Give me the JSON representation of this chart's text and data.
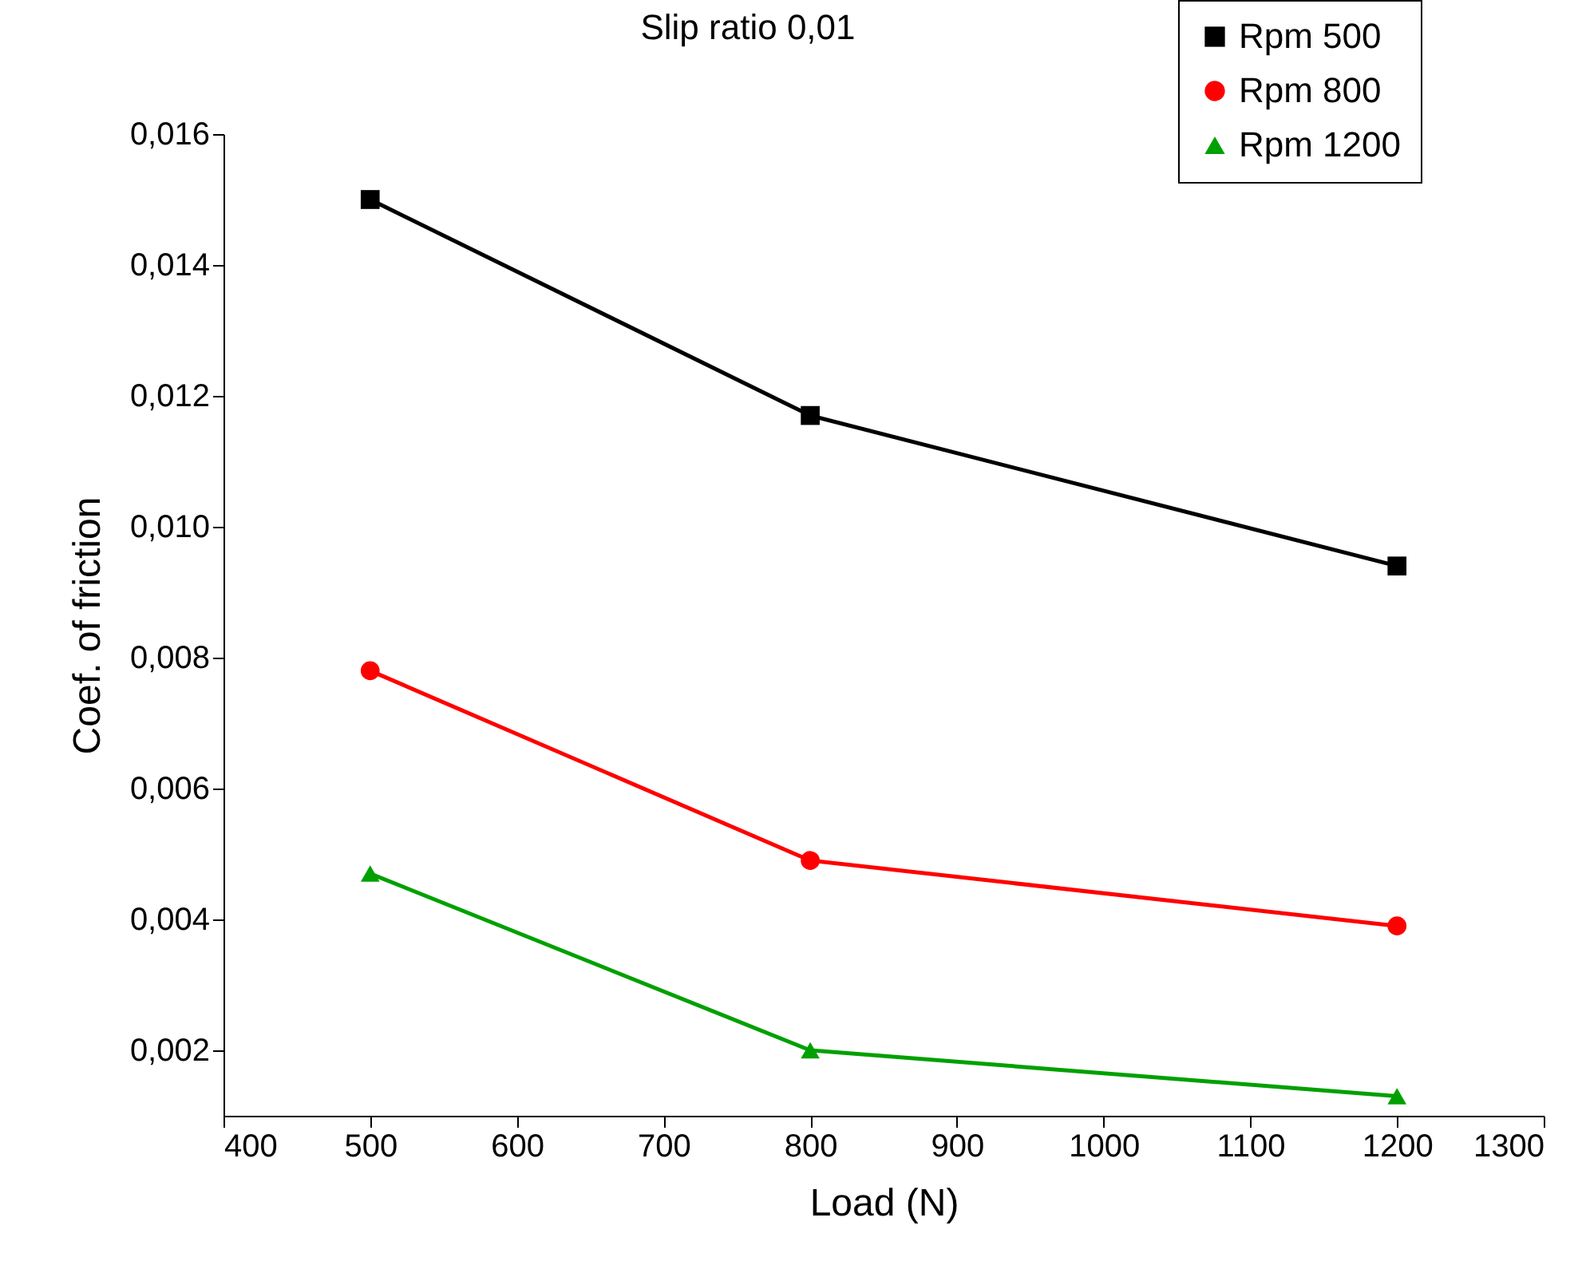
{
  "chart_data": {
    "type": "line",
    "title": "Slip ratio 0,01",
    "xlabel": "Load (N)",
    "ylabel": "Coef. of friction",
    "x": [
      500,
      800,
      1200
    ],
    "series": [
      {
        "name": "Rpm 500",
        "color": "#000000",
        "marker": "square",
        "values": [
          0.015,
          0.0117,
          0.0094
        ]
      },
      {
        "name": "Rpm 800",
        "color": "#ff0000",
        "marker": "circle",
        "values": [
          0.0078,
          0.0049,
          0.0039
        ]
      },
      {
        "name": "Rpm 1200",
        "color": "#00a000",
        "marker": "triangle",
        "values": [
          0.0047,
          0.002,
          0.0013
        ]
      }
    ],
    "xlim": [
      400,
      1300
    ],
    "xticks": [
      400,
      500,
      600,
      700,
      800,
      900,
      1000,
      1100,
      1200,
      1300
    ],
    "ylim": [
      0.001,
      0.016
    ],
    "yticks": [
      {
        "value": 0.002,
        "label": "0,002"
      },
      {
        "value": 0.004,
        "label": "0,004"
      },
      {
        "value": 0.006,
        "label": "0,006"
      },
      {
        "value": 0.008,
        "label": "0,008"
      },
      {
        "value": 0.01,
        "label": "0,010"
      },
      {
        "value": 0.012,
        "label": "0,012"
      },
      {
        "value": 0.014,
        "label": "0,014"
      },
      {
        "value": 0.016,
        "label": "0,016"
      }
    ],
    "grid": false,
    "legend": "top right",
    "line_style": "solid"
  }
}
